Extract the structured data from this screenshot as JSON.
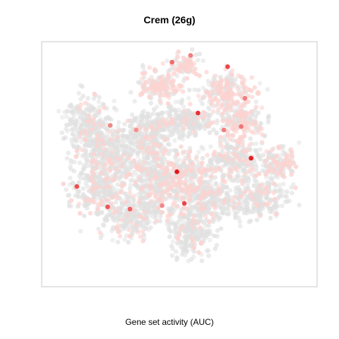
{
  "chart_data": {
    "type": "scatter",
    "title": "Crem (26g)",
    "xlabel": "Gene set activity (AUC)",
    "ylabel": "",
    "grid": false,
    "legend": "none",
    "colors": {
      "background": "#e0e0e0",
      "low": "#fcd3d0",
      "high": "#e4161b",
      "frame": "#c8c8c8"
    },
    "highlighted_points": [
      {
        "x": -0.02,
        "y": -0.07,
        "auc": 1.0
      },
      {
        "x": 0.58,
        "y": 0.05,
        "auc": 0.95
      },
      {
        "x": 0.15,
        "y": 0.45,
        "auc": 0.85
      },
      {
        "x": 0.39,
        "y": 0.86,
        "auc": 0.75
      },
      {
        "x": 0.04,
        "y": -0.35,
        "auc": 0.75
      },
      {
        "x": -0.83,
        "y": -0.2,
        "auc": 0.7
      },
      {
        "x": -0.58,
        "y": -0.38,
        "auc": 0.65
      },
      {
        "x": -0.4,
        "y": -0.4,
        "auc": 0.6
      },
      {
        "x": -0.06,
        "y": 0.9,
        "auc": 0.55
      },
      {
        "x": 0.5,
        "y": 0.33,
        "auc": 0.5
      },
      {
        "x": 0.53,
        "y": 0.58,
        "auc": 0.45
      },
      {
        "x": -0.56,
        "y": 0.34,
        "auc": 0.4
      },
      {
        "x": 0.36,
        "y": 0.3,
        "auc": 0.45
      },
      {
        "x": -0.35,
        "y": 0.3,
        "auc": 0.35
      },
      {
        "x": 0.09,
        "y": 0.96,
        "auc": 0.45
      },
      {
        "x": -0.14,
        "y": -0.37,
        "auc": 0.4
      }
    ]
  }
}
